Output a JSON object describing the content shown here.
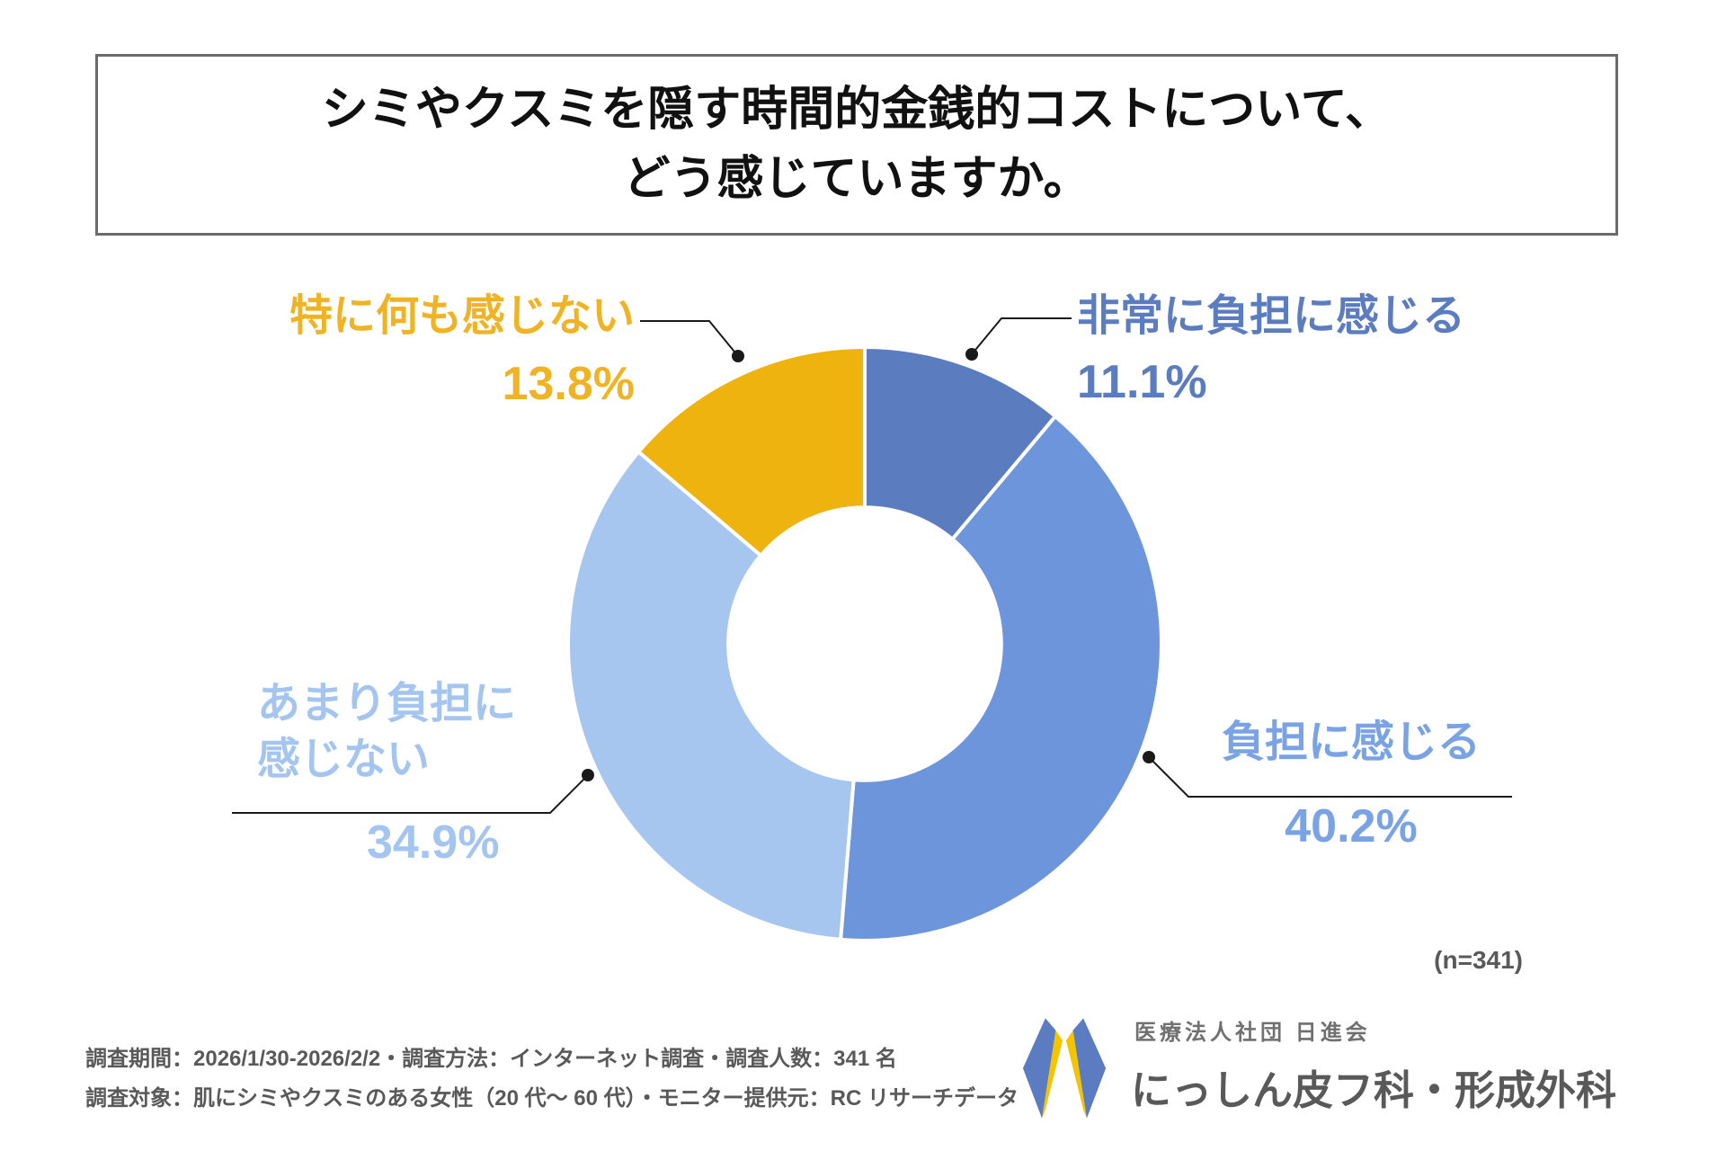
{
  "title": {
    "line1": "シミやクスミを隠す時間的金銭的コストについて、",
    "line2": "どう感じていますか。"
  },
  "chart_data": {
    "type": "pie",
    "subtype": "donut",
    "title": "シミやクスミを隠す時間的金銭的コストについて、どう感じていますか。",
    "start_angle_deg": 0,
    "direction": "clockwise",
    "inner_radius_ratio": 0.46,
    "legend_position": "callout-labels",
    "sample_note": "(n=341)",
    "total": 100,
    "segments": [
      {
        "label": "非常に負担に感じる",
        "value": 11.1,
        "pct_label": "11.1%",
        "color": "#5B7CBE",
        "label_color": "#5B7CBE"
      },
      {
        "label": "負担に感じる",
        "value": 40.2,
        "pct_label": "40.2%",
        "color": "#6C95DB",
        "label_color": "#7AA3E6"
      },
      {
        "label": "あまり負担に感じない",
        "value": 34.9,
        "pct_label": "34.9%",
        "color": "#A6C6EF",
        "label_color": "#A4C5F0",
        "label_lines": [
          "あまり負担に",
          "感じない"
        ]
      },
      {
        "label": "特に何も感じない",
        "value": 13.8,
        "pct_label": "13.8%",
        "color": "#EFB310",
        "label_color": "#F0B323"
      }
    ]
  },
  "footer": {
    "line1": "調査期間：2026/1/30-2026/2/2・調査方法：インターネット調査・調査人数：341 名",
    "line2": "調査対象：肌にシミやクスミのある女性（20 代～ 60 代）・モニター提供元：RC リサーチデータ"
  },
  "brand": {
    "organization": "医療法人社団 日進会",
    "clinic_name": "にっしん皮フ科・形成外科",
    "logo_blue": "#5B7CC0",
    "logo_yellow": "#F5C400"
  }
}
